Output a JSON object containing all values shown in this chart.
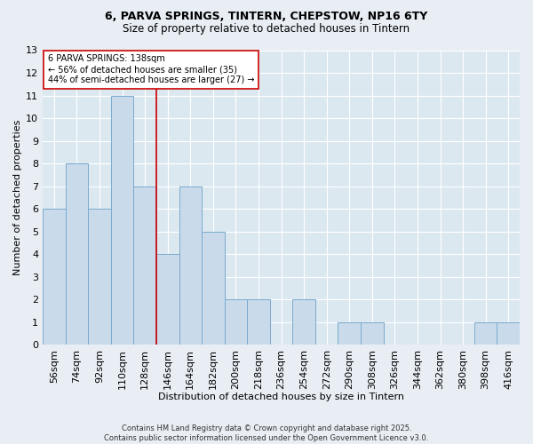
{
  "title1": "6, PARVA SPRINGS, TINTERN, CHEPSTOW, NP16 6TY",
  "title2": "Size of property relative to detached houses in Tintern",
  "xlabel": "Distribution of detached houses by size in Tintern",
  "ylabel": "Number of detached properties",
  "categories": [
    "56sqm",
    "74sqm",
    "92sqm",
    "110sqm",
    "128sqm",
    "146sqm",
    "164sqm",
    "182sqm",
    "200sqm",
    "218sqm",
    "236sqm",
    "254sqm",
    "272sqm",
    "290sqm",
    "308sqm",
    "326sqm",
    "344sqm",
    "362sqm",
    "380sqm",
    "398sqm",
    "416sqm"
  ],
  "values": [
    6,
    8,
    6,
    11,
    7,
    4,
    7,
    5,
    2,
    2,
    0,
    2,
    0,
    1,
    1,
    0,
    0,
    0,
    0,
    1,
    1
  ],
  "bar_color": "#c9daea",
  "bar_edge_color": "#7baacf",
  "vline_color": "#cc0000",
  "annotation_text": "6 PARVA SPRINGS: 138sqm\n← 56% of detached houses are smaller (35)\n44% of semi-detached houses are larger (27) →",
  "annotation_box_color": "white",
  "annotation_box_edge": "#cc0000",
  "ylim": [
    0,
    13
  ],
  "yticks": [
    0,
    1,
    2,
    3,
    4,
    5,
    6,
    7,
    8,
    9,
    10,
    11,
    12,
    13
  ],
  "footer1": "Contains HM Land Registry data © Crown copyright and database right 2025.",
  "footer2": "Contains public sector information licensed under the Open Government Licence v3.0.",
  "bg_color": "#e8eef4",
  "plot_bg_color": "#dce8f0",
  "title1_fontsize": 9,
  "title2_fontsize": 8.5,
  "axis_label_fontsize": 8,
  "tick_fontsize": 8,
  "annotation_fontsize": 7,
  "footer_fontsize": 6
}
